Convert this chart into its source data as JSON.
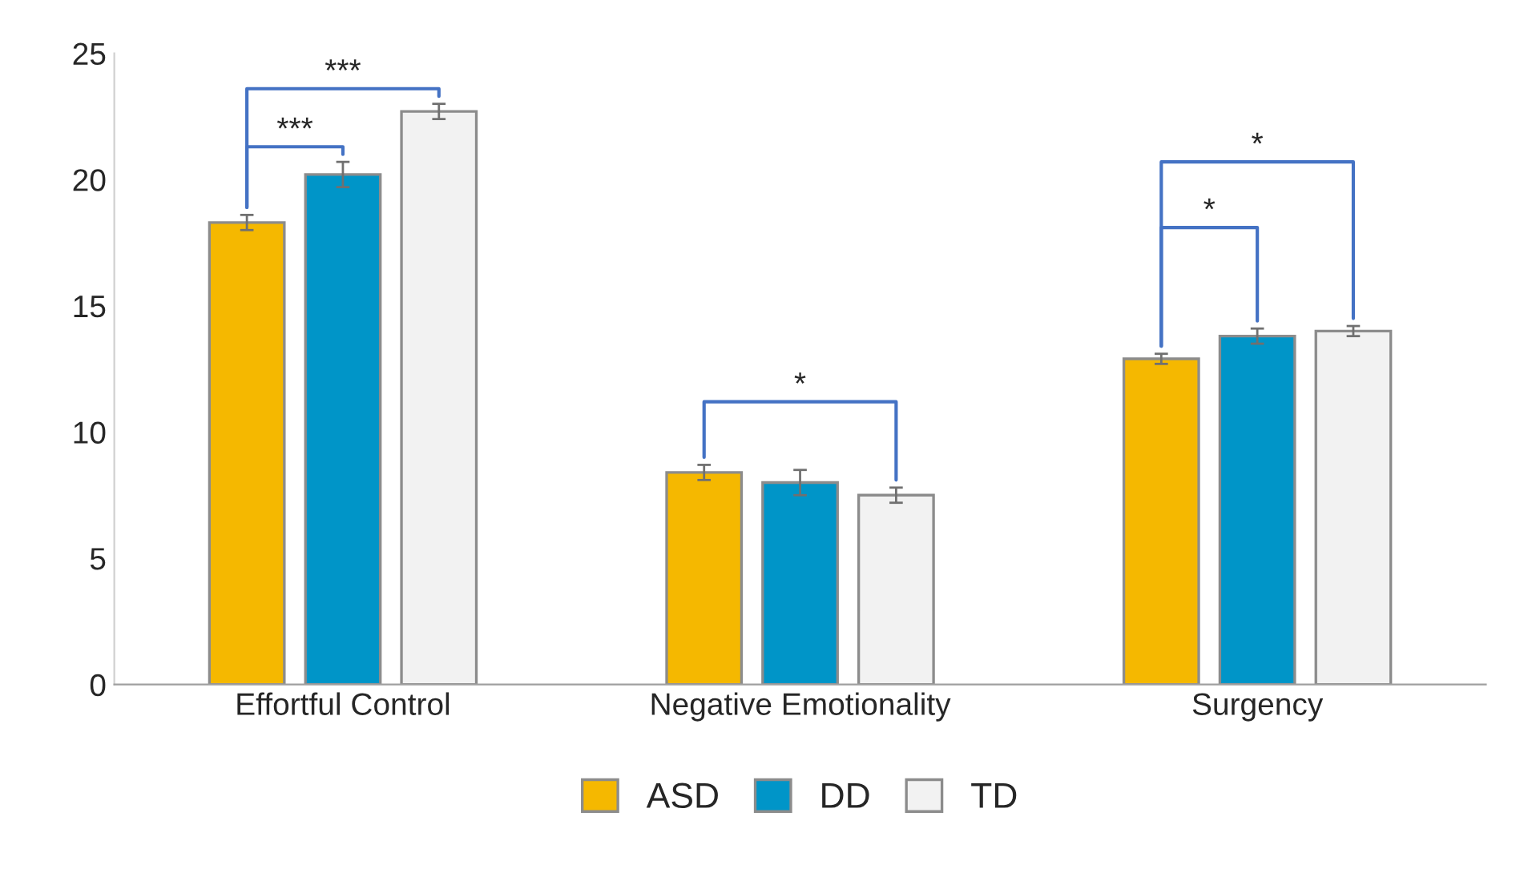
{
  "chart_data": {
    "type": "bar",
    "categories": [
      "Effortful Control",
      "Negative Emotionality",
      "Surgency"
    ],
    "series": [
      {
        "name": "ASD",
        "color": "#f5b800",
        "values": [
          18.3,
          8.4,
          12.9
        ],
        "errors": [
          0.3,
          0.3,
          0.2
        ]
      },
      {
        "name": "DD",
        "color": "#0095c8",
        "values": [
          20.2,
          8.0,
          13.8
        ],
        "errors": [
          0.5,
          0.5,
          0.3
        ]
      },
      {
        "name": "TD",
        "color": "#f2f2f2",
        "values": [
          22.7,
          7.5,
          14.0
        ],
        "errors": [
          0.3,
          0.3,
          0.2
        ]
      }
    ],
    "ylim": [
      0,
      25
    ],
    "yticks": [
      0,
      5,
      10,
      15,
      20,
      25
    ],
    "grid": false,
    "legend": "bottom",
    "annotations": [
      "***",
      "***",
      "*",
      "*",
      "*"
    ]
  }
}
